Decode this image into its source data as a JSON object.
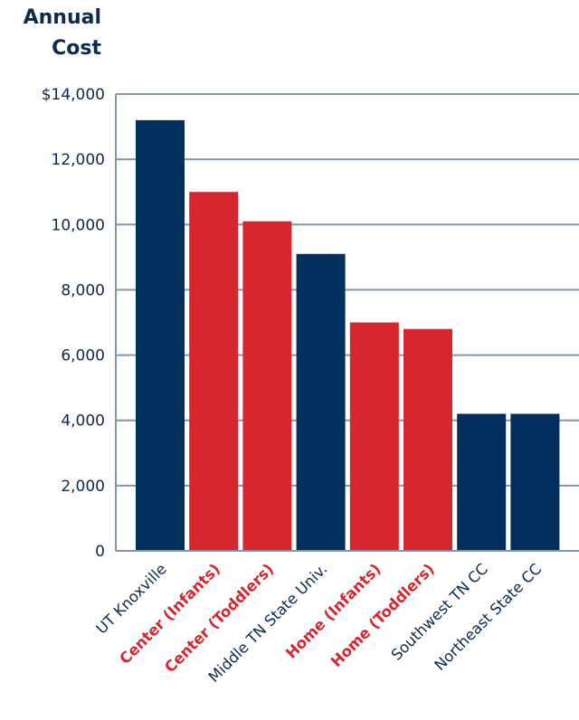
{
  "chart_data": {
    "type": "bar",
    "ylabel_lines": [
      "Annual",
      "Cost"
    ],
    "categories": [
      "UT Knoxville",
      "Center (Infants)",
      "Center (Toddlers)",
      "Middle TN State Univ.",
      "Home (Infants)",
      "Home (Toddlers)",
      "Southwest TN CC",
      "Northeast State CC"
    ],
    "values": [
      13200,
      11000,
      10100,
      9100,
      7000,
      6800,
      4200,
      4200
    ],
    "highlight": [
      false,
      true,
      true,
      false,
      true,
      true,
      false,
      false
    ],
    "ylim": [
      0,
      14000
    ],
    "yticks": [
      0,
      2000,
      4000,
      6000,
      8000,
      10000,
      12000,
      14000
    ],
    "ytick_labels": [
      "0",
      "2,000",
      "4,000",
      "6,000",
      "8,000",
      "10,000",
      "12,000",
      "$14,000"
    ],
    "grid": true,
    "colors": {
      "tuition": "#002e5d",
      "childcare": "#d7262e",
      "grid": "#7f96ab",
      "text_dark": "#0d2b4e"
    }
  }
}
